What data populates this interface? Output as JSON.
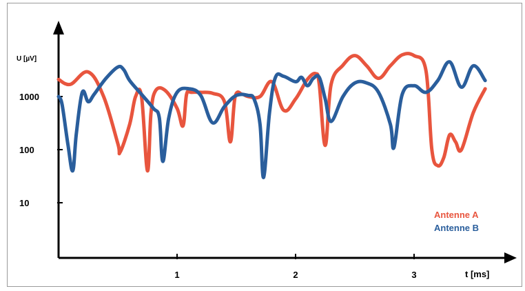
{
  "chart_data": {
    "type": "line",
    "title": "",
    "xlabel": "t [ms]",
    "ylabel": "U [µV]",
    "y_scale": "log",
    "xlim": [
      0,
      3.7
    ],
    "ylim": [
      1,
      10000
    ],
    "x_ticks": [
      {
        "value": 1,
        "label": "1"
      },
      {
        "value": 2,
        "label": "2"
      },
      {
        "value": 3,
        "label": "3"
      }
    ],
    "y_ticks": [
      {
        "value": 10,
        "label": "10"
      },
      {
        "value": 100,
        "label": "100"
      },
      {
        "value": 1000,
        "label": "1000"
      }
    ],
    "grid": false,
    "legend_position": "bottom-right",
    "series": [
      {
        "name": "Antenne A",
        "color": "#e8553e",
        "x": [
          0,
          0.1,
          0.25,
          0.38,
          0.5,
          0.52,
          0.6,
          0.65,
          0.7,
          0.75,
          0.78,
          0.82,
          0.9,
          1.0,
          1.05,
          1.08,
          1.12,
          1.2,
          1.3,
          1.4,
          1.45,
          1.49,
          1.55,
          1.6,
          1.7,
          1.8,
          1.9,
          2.0,
          2.1,
          2.17,
          2.2,
          2.25,
          2.3,
          2.4,
          2.5,
          2.6,
          2.7,
          2.8,
          2.9,
          3.0,
          3.1,
          3.15,
          3.2,
          3.25,
          3.3,
          3.35,
          3.4,
          3.5,
          3.6
        ],
        "y": [
          2100,
          1700,
          2900,
          1000,
          130,
          90,
          300,
          1000,
          1000,
          40,
          500,
          1300,
          1300,
          600,
          280,
          1100,
          1200,
          1200,
          1150,
          800,
          140,
          1000,
          1100,
          1000,
          1000,
          1900,
          550,
          900,
          2100,
          2700,
          1700,
          120,
          1700,
          3900,
          5900,
          3800,
          2200,
          3800,
          6100,
          5900,
          3100,
          100,
          50,
          70,
          190,
          140,
          100,
          500,
          1400
        ]
      },
      {
        "name": "Antenne B",
        "color": "#2a5e9c",
        "x": [
          0,
          0.03,
          0.08,
          0.12,
          0.15,
          0.2,
          0.25,
          0.3,
          0.4,
          0.5,
          0.55,
          0.6,
          0.7,
          0.8,
          0.85,
          0.88,
          0.93,
          1.0,
          1.1,
          1.2,
          1.3,
          1.4,
          1.5,
          1.6,
          1.65,
          1.7,
          1.73,
          1.78,
          1.83,
          1.9,
          2.0,
          2.05,
          2.1,
          2.15,
          2.2,
          2.25,
          2.3,
          2.4,
          2.5,
          2.6,
          2.7,
          2.8,
          2.83,
          2.9,
          3.0,
          3.1,
          3.2,
          3.3,
          3.4,
          3.5,
          3.6
        ],
        "y": [
          1000,
          700,
          120,
          40,
          200,
          1200,
          800,
          1100,
          2200,
          3600,
          3200,
          2000,
          1100,
          600,
          400,
          60,
          400,
          1200,
          1400,
          1050,
          320,
          650,
          1050,
          1050,
          900,
          300,
          30,
          500,
          2300,
          2400,
          1900,
          2300,
          1600,
          2200,
          2300,
          900,
          340,
          1000,
          1800,
          1800,
          1200,
          300,
          110,
          1100,
          1600,
          1200,
          2000,
          4500,
          1500,
          3800,
          2000
        ]
      }
    ]
  }
}
